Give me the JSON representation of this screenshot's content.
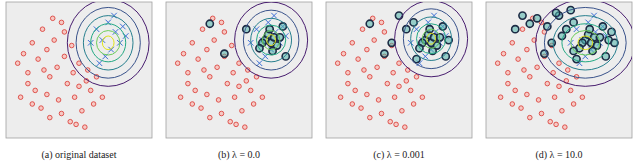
{
  "chart_data": [
    {
      "type": "scatter",
      "title": "(a) original dataset",
      "xlim": [
        0,
        100
      ],
      "ylim": [
        0,
        100
      ],
      "tick_labels": false,
      "grid": false,
      "series": [
        {
          "color": "#d9352f",
          "marker": "circle",
          "x": [
            8,
            12,
            15,
            18,
            22,
            25,
            28,
            30,
            33,
            35,
            38,
            40,
            42,
            45,
            47,
            50,
            52,
            55,
            58,
            60,
            20,
            24,
            30,
            36,
            44,
            48,
            54,
            15,
            26,
            32,
            40,
            46,
            10,
            18,
            28,
            38,
            50,
            56,
            62,
            66
          ],
          "values": [
            55,
            62,
            48,
            70,
            58,
            80,
            65,
            45,
            72,
            52,
            85,
            60,
            40,
            68,
            30,
            55,
            20,
            42,
            35,
            25,
            35,
            22,
            15,
            28,
            12,
            10,
            8,
            40,
            50,
            88,
            78,
            48,
            30,
            25,
            32,
            18,
            38,
            50,
            45,
            30
          ]
        },
        {
          "color": "#3b6fd6",
          "marker": "x",
          "x": [
            62,
            66,
            70,
            72,
            75,
            78,
            80,
            68,
            74,
            82,
            64,
            58
          ],
          "values": [
            80,
            72,
            85,
            65,
            78,
            70,
            82,
            60,
            90,
            75,
            55,
            70
          ]
        }
      ],
      "contours": {
        "cx": 70,
        "cy": 70,
        "rx": [
          28,
          22,
          17,
          12,
          8,
          4
        ],
        "ry": [
          32,
          26,
          20,
          14,
          9,
          5
        ]
      }
    },
    {
      "type": "scatter",
      "title": "(b) λ = 0.0",
      "xlim": [
        0,
        100
      ],
      "ylim": [
        0,
        100
      ],
      "tick_labels": false,
      "grid": false,
      "series": [
        {
          "color": "#d9352f",
          "marker": "circle",
          "x": [
            8,
            12,
            15,
            18,
            22,
            25,
            28,
            30,
            33,
            35,
            38,
            40,
            42,
            45,
            47,
            50,
            52,
            55,
            58,
            60,
            20,
            24,
            30,
            36,
            44,
            48,
            54,
            15,
            26,
            32,
            40,
            46,
            10,
            18,
            28,
            38,
            50,
            56,
            62,
            66
          ],
          "values": [
            55,
            62,
            48,
            70,
            58,
            80,
            65,
            45,
            72,
            52,
            85,
            60,
            40,
            68,
            30,
            55,
            20,
            42,
            35,
            25,
            35,
            22,
            15,
            28,
            12,
            10,
            8,
            40,
            50,
            88,
            78,
            48,
            30,
            25,
            32,
            18,
            38,
            50,
            45,
            30
          ]
        },
        {
          "color": "#3b6fd6",
          "marker": "x",
          "x": [
            62,
            66,
            70,
            72,
            75,
            78,
            80,
            68,
            74,
            82,
            64,
            58
          ],
          "values": [
            80,
            72,
            85,
            65,
            78,
            70,
            82,
            60,
            90,
            75,
            55,
            70
          ]
        },
        {
          "color": "#1c2b44",
          "marker": "ring",
          "x": [
            68,
            70,
            72,
            74,
            76,
            66,
            71,
            73,
            78,
            64,
            55,
            40,
            30,
            80,
            82
          ],
          "values": [
            72,
            76,
            70,
            74,
            68,
            70,
            80,
            64,
            74,
            66,
            80,
            62,
            84,
            82,
            60
          ]
        }
      ],
      "contours": {
        "cx": 72,
        "cy": 72,
        "rx": [
          25,
          19,
          14,
          10,
          6,
          3
        ],
        "ry": [
          28,
          22,
          16,
          11,
          7,
          4
        ]
      }
    },
    {
      "type": "scatter",
      "title": "(c) λ = 0.001",
      "xlim": [
        0,
        100
      ],
      "ylim": [
        0,
        100
      ],
      "tick_labels": false,
      "grid": false,
      "series": [
        {
          "color": "#d9352f",
          "marker": "circle",
          "x": [
            8,
            12,
            15,
            18,
            22,
            25,
            28,
            30,
            33,
            35,
            38,
            40,
            42,
            45,
            47,
            50,
            52,
            55,
            58,
            60,
            20,
            24,
            30,
            36,
            44,
            48,
            54,
            15,
            26,
            32,
            40,
            46,
            10,
            18,
            28,
            38,
            50,
            56,
            62,
            66
          ],
          "values": [
            55,
            62,
            48,
            70,
            58,
            80,
            65,
            45,
            72,
            52,
            85,
            60,
            40,
            68,
            30,
            55,
            20,
            42,
            35,
            25,
            35,
            22,
            15,
            28,
            12,
            10,
            8,
            40,
            50,
            88,
            78,
            48,
            30,
            25,
            32,
            18,
            38,
            50,
            45,
            30
          ]
        },
        {
          "color": "#3b6fd6",
          "marker": "x",
          "x": [
            62,
            66,
            70,
            72,
            75,
            78,
            80,
            68,
            74,
            82,
            64,
            58
          ],
          "values": [
            80,
            72,
            85,
            65,
            78,
            70,
            82,
            60,
            90,
            75,
            55,
            70
          ]
        },
        {
          "color": "#1c2b44",
          "marker": "ring",
          "x": [
            68,
            70,
            72,
            74,
            76,
            66,
            71,
            73,
            78,
            64,
            55,
            40,
            30,
            80,
            82,
            60,
            62,
            84,
            50,
            45
          ],
          "values": [
            72,
            76,
            70,
            74,
            68,
            70,
            80,
            64,
            74,
            66,
            80,
            62,
            84,
            82,
            60,
            85,
            58,
            72,
            90,
            70
          ]
        }
      ],
      "contours": {
        "cx": 72,
        "cy": 73,
        "rx": [
          25,
          19,
          14,
          10,
          6,
          3
        ],
        "ry": [
          28,
          22,
          16,
          11,
          7,
          4
        ]
      }
    },
    {
      "type": "scatter",
      "title": "(d) λ = 10.0",
      "xlim": [
        0,
        100
      ],
      "ylim": [
        0,
        100
      ],
      "tick_labels": false,
      "grid": false,
      "series": [
        {
          "color": "#d9352f",
          "marker": "circle",
          "x": [
            8,
            12,
            15,
            18,
            22,
            25,
            28,
            30,
            33,
            35,
            38,
            40,
            42,
            45,
            47,
            50,
            52,
            55,
            58,
            60,
            20,
            24,
            30,
            36,
            44,
            48,
            54,
            15,
            26,
            32,
            40,
            46,
            10,
            18,
            28,
            38,
            50,
            56,
            62,
            66
          ],
          "values": [
            55,
            62,
            48,
            70,
            58,
            80,
            65,
            45,
            72,
            52,
            85,
            60,
            40,
            68,
            30,
            55,
            20,
            42,
            35,
            25,
            35,
            22,
            15,
            28,
            12,
            10,
            8,
            40,
            50,
            88,
            78,
            48,
            30,
            25,
            32,
            18,
            38,
            50,
            45,
            30
          ]
        },
        {
          "color": "#3b6fd6",
          "marker": "x",
          "x": [
            62,
            66,
            70,
            72,
            75,
            78,
            80,
            68,
            74,
            82,
            64,
            58
          ],
          "values": [
            80,
            72,
            85,
            65,
            78,
            70,
            82,
            60,
            90,
            75,
            55,
            70
          ]
        },
        {
          "color": "#1c2b44",
          "marker": "ring",
          "x": [
            68,
            70,
            72,
            74,
            76,
            66,
            71,
            73,
            78,
            64,
            55,
            40,
            30,
            80,
            82,
            60,
            62,
            84,
            50,
            45,
            35,
            25,
            20,
            52,
            58,
            86,
            88,
            42,
            48,
            60
          ],
          "values": [
            72,
            76,
            70,
            74,
            68,
            70,
            80,
            64,
            74,
            66,
            80,
            62,
            84,
            82,
            60,
            85,
            58,
            72,
            90,
            70,
            88,
            90,
            80,
            75,
            94,
            78,
            70,
            82,
            92,
            64
          ]
        }
      ],
      "contours": {
        "cx": 68,
        "cy": 70,
        "rx": [
          34,
          28,
          22,
          16,
          10,
          5
        ],
        "ry": [
          32,
          26,
          20,
          14,
          9,
          5
        ]
      }
    }
  ]
}
